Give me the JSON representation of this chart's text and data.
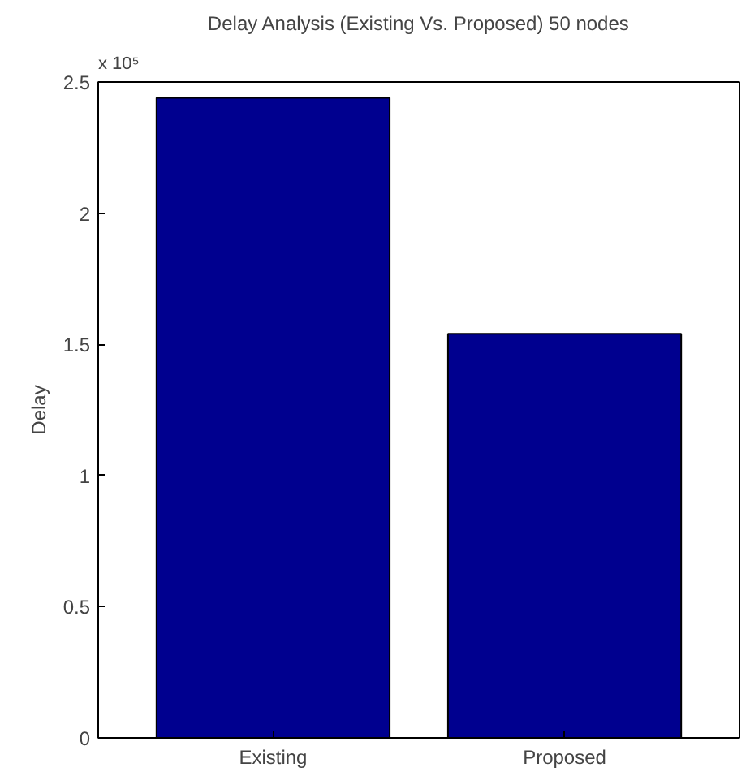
{
  "chart_data": {
    "type": "bar",
    "title": "Delay Analysis (Existing Vs. Proposed) 50 nodes",
    "ylabel": "Delay",
    "categories": [
      "Existing",
      "Proposed"
    ],
    "values": [
      2.44,
      1.54
    ],
    "color": "#00008f",
    "ylim": [
      0,
      2.5
    ],
    "yticks": [
      0,
      0.5,
      1,
      1.5,
      2,
      2.5
    ],
    "annotations": [
      "x 10⁵"
    ],
    "grid": false
  }
}
